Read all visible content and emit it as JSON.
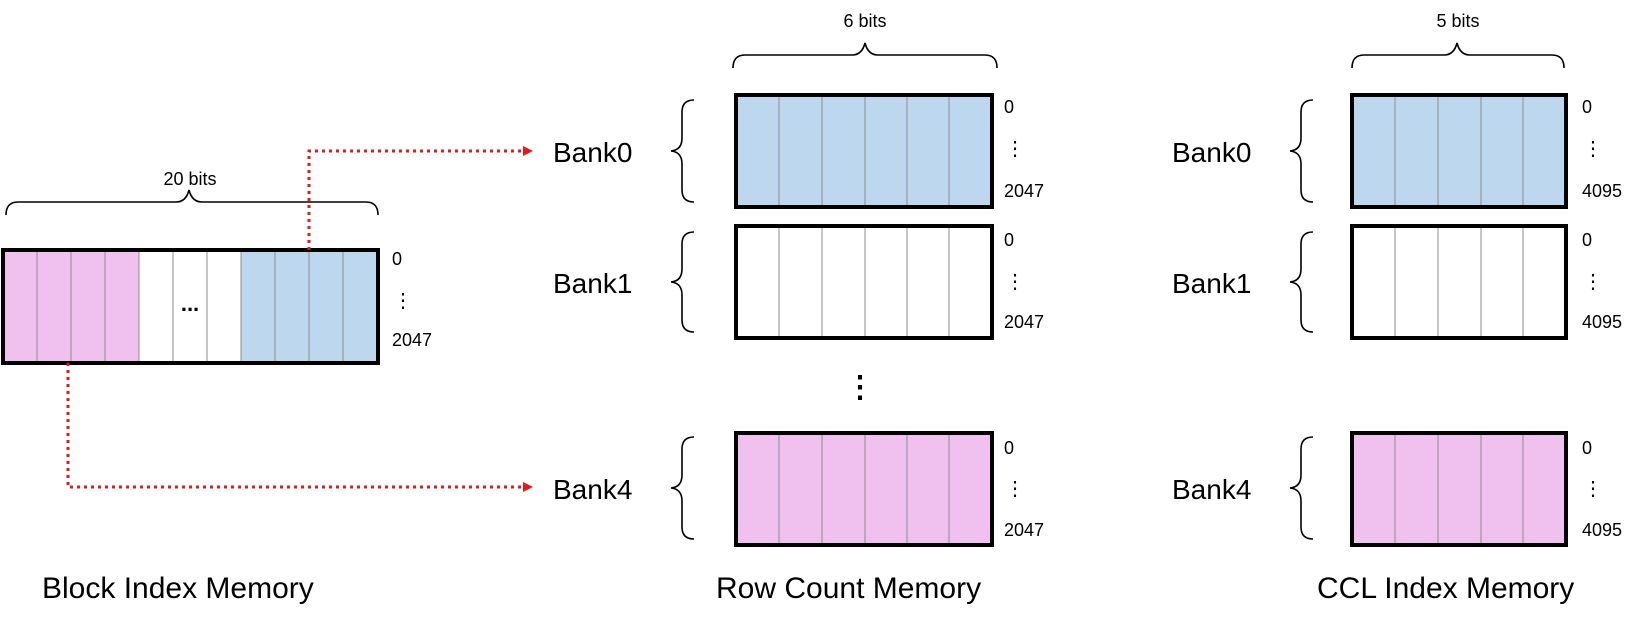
{
  "colors": {
    "blue": "#bdd7ee",
    "pink": "#f0c0ee",
    "white": "#ffffff",
    "border": "#000000",
    "divider": "#8c8c8c",
    "arrow": "#e11a1a"
  },
  "block_index": {
    "title": "Block Index Memory",
    "width_label": "20 bits",
    "ellipsis": "...",
    "addr_top": "0",
    "addr_mid": "⋮",
    "addr_bottom": "2047"
  },
  "row_count": {
    "title": "Row Count Memory",
    "width_label": "6 bits",
    "gap_dots": "⋮",
    "banks": [
      {
        "label": "Bank0",
        "addr_top": "0",
        "addr_mid": "⋮",
        "addr_bottom": "2047",
        "fill": "blue"
      },
      {
        "label": "Bank1",
        "addr_top": "0",
        "addr_mid": "⋮",
        "addr_bottom": "2047",
        "fill": "white"
      },
      {
        "label": "Bank4",
        "addr_top": "0",
        "addr_mid": "⋮",
        "addr_bottom": "2047",
        "fill": "pink"
      }
    ]
  },
  "ccl_index": {
    "title": "CCL Index Memory",
    "width_label": "5 bits",
    "banks": [
      {
        "label": "Bank0",
        "addr_top": "0",
        "addr_mid": "⋮",
        "addr_bottom": "4095",
        "fill": "blue"
      },
      {
        "label": "Bank1",
        "addr_top": "0",
        "addr_mid": "⋮",
        "addr_bottom": "4095",
        "fill": "white"
      },
      {
        "label": "Bank4",
        "addr_top": "0",
        "addr_mid": "⋮",
        "addr_bottom": "4095",
        "fill": "pink"
      }
    ]
  }
}
